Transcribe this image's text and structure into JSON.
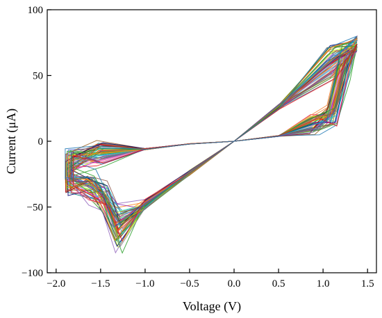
{
  "chart_data": {
    "type": "line",
    "title": "",
    "xlabel": "Voltage (V)",
    "ylabel": "Current (μA)",
    "xlim": [
      -2.1,
      1.6
    ],
    "ylim": [
      -100,
      100
    ],
    "grid": false,
    "legend": "none",
    "x_ticks": [
      -2.0,
      -1.5,
      -1.0,
      -0.5,
      0.0,
      0.5,
      1.0,
      1.5
    ],
    "x_tick_labels": [
      "−2.0",
      "−1.5",
      "−1.0",
      "−0.5",
      "0.0",
      "0.5",
      "1.0",
      "1.5"
    ],
    "y_ticks": [
      -100,
      -50,
      0,
      50,
      100
    ],
    "y_tick_labels": [
      "−100",
      "−50",
      "0",
      "50",
      "100"
    ],
    "cycle_count": 60,
    "series": [
      {
        "values_x": [
          -1.85,
          -1.5,
          -1.0,
          -0.5,
          0.0,
          0.5,
          0.9,
          1.1,
          1.25,
          1.38,
          1.1,
          0.5,
          0.0,
          -0.5,
          -1.0,
          -1.3,
          -1.45,
          -1.6,
          -1.85
        ],
        "values_y": [
          -16,
          -10,
          -6,
          -2,
          0,
          4,
          13,
          20,
          60,
          74,
          60,
          26,
          0,
          -24,
          -48,
          -68,
          -45,
          -36,
          -30
        ]
      }
    ],
    "series_colors": [
      "#e6194b",
      "#3cb44b",
      "#ffe119",
      "#4363d8",
      "#f58231",
      "#911eb4",
      "#46f0f0",
      "#f032e6",
      "#bcf60c",
      "#fabebe",
      "#008080",
      "#9a6324",
      "#800000",
      "#808000",
      "#000075",
      "#808080",
      "#1f77b4",
      "#2ca02c",
      "#d62728",
      "#9467bd",
      "#8c564b",
      "#17becf",
      "#bcbd22",
      "#7f7f7f",
      "#ff7f0e",
      "#6a3d9a",
      "#b15928",
      "#33a02c",
      "#e31a1c",
      "#1f78b4"
    ]
  }
}
